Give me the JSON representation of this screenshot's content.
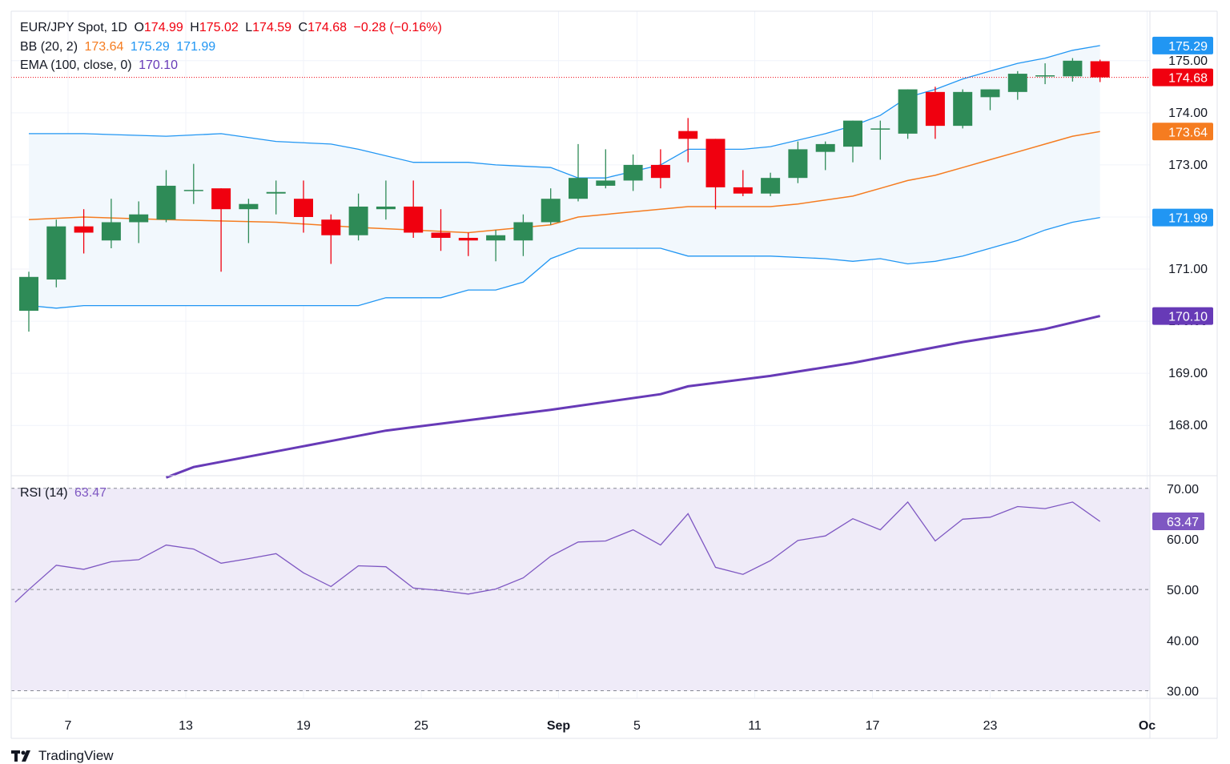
{
  "header": {
    "symbol": "EUR/JPY Spot, 1D",
    "o_label": "O",
    "o": "174.99",
    "h_label": "H",
    "h": "175.02",
    "l_label": "L",
    "l": "174.59",
    "c_label": "C",
    "c": "174.68",
    "change": "−0.28 (−0.16%)"
  },
  "bb_legend": {
    "label": "BB (20, 2)",
    "basis": "173.64",
    "upper": "175.29",
    "lower": "171.99"
  },
  "ema_legend": {
    "label": "EMA (100, close, 0)",
    "value": "170.10"
  },
  "rsi_legend": {
    "label": "RSI (14)",
    "value": "63.47"
  },
  "footer": {
    "brand": "TradingView"
  },
  "colors": {
    "up": "#2e8b57",
    "down": "#f0000f",
    "bb_band": "#2196f3",
    "bb_basis": "#f57c20",
    "ema": "#673ab7",
    "rsi": "#7e57c2",
    "rsi_fill": "#efebf8",
    "bb_fill": "#f2f8fd",
    "grid": "#f0f3fa"
  },
  "chart_data": [
    {
      "type": "candlestick",
      "title": "EUR/JPY Spot, 1D",
      "ylim": [
        167.05,
        175.95
      ],
      "y_ticks": [
        "168.00",
        "169.00",
        "170.00",
        "171.00",
        "172.00",
        "173.00",
        "174.00",
        "175.00"
      ],
      "x_ticks": [
        {
          "label": "7",
          "date": "2024-08-07"
        },
        {
          "label": "13",
          "date": "2024-08-13"
        },
        {
          "label": "19",
          "date": "2024-08-19"
        },
        {
          "label": "25",
          "date": "2024-08-25"
        },
        {
          "label": "Sep",
          "date": "2024-09-01"
        },
        {
          "label": "5",
          "date": "2024-09-05"
        },
        {
          "label": "11",
          "date": "2024-09-11"
        },
        {
          "label": "17",
          "date": "2024-09-17"
        },
        {
          "label": "23",
          "date": "2024-09-23"
        },
        {
          "label": "Oc",
          "date": "2024-10-01"
        }
      ],
      "candles": [
        {
          "date": "2024-08-05",
          "o": 170.2,
          "h": 170.95,
          "l": 169.8,
          "c": 170.85
        },
        {
          "date": "2024-08-06",
          "o": 170.8,
          "h": 171.95,
          "l": 170.65,
          "c": 171.82
        },
        {
          "date": "2024-08-07",
          "o": 171.82,
          "h": 172.15,
          "l": 171.3,
          "c": 171.7
        },
        {
          "date": "2024-08-08",
          "o": 171.55,
          "h": 172.35,
          "l": 171.4,
          "c": 171.9
        },
        {
          "date": "2024-08-09",
          "o": 171.9,
          "h": 172.3,
          "l": 171.5,
          "c": 172.05
        },
        {
          "date": "2024-08-12",
          "o": 171.95,
          "h": 172.9,
          "l": 171.9,
          "c": 172.6
        },
        {
          "date": "2024-08-13",
          "o": 172.52,
          "h": 173.02,
          "l": 172.25,
          "c": 172.52
        },
        {
          "date": "2024-08-14",
          "o": 172.55,
          "h": 172.55,
          "l": 170.95,
          "c": 172.15
        },
        {
          "date": "2024-08-15",
          "o": 172.15,
          "h": 172.35,
          "l": 171.5,
          "c": 172.25
        },
        {
          "date": "2024-08-16",
          "o": 172.45,
          "h": 172.7,
          "l": 172.05,
          "c": 172.48
        },
        {
          "date": "2024-08-19",
          "o": 172.35,
          "h": 172.7,
          "l": 171.7,
          "c": 172.0
        },
        {
          "date": "2024-08-20",
          "o": 171.95,
          "h": 172.05,
          "l": 171.1,
          "c": 171.65
        },
        {
          "date": "2024-08-21",
          "o": 171.65,
          "h": 172.45,
          "l": 171.55,
          "c": 172.2
        },
        {
          "date": "2024-08-22",
          "o": 172.15,
          "h": 172.7,
          "l": 171.95,
          "c": 172.2
        },
        {
          "date": "2024-08-23",
          "o": 172.2,
          "h": 172.7,
          "l": 171.6,
          "c": 171.7
        },
        {
          "date": "2024-08-26",
          "o": 171.7,
          "h": 172.15,
          "l": 171.35,
          "c": 171.6
        },
        {
          "date": "2024-08-27",
          "o": 171.6,
          "h": 171.7,
          "l": 171.25,
          "c": 171.55
        },
        {
          "date": "2024-08-28",
          "o": 171.55,
          "h": 171.75,
          "l": 171.15,
          "c": 171.65
        },
        {
          "date": "2024-08-29",
          "o": 171.55,
          "h": 172.05,
          "l": 171.25,
          "c": 171.9
        },
        {
          "date": "2024-08-30",
          "o": 171.9,
          "h": 172.55,
          "l": 171.85,
          "c": 172.35
        },
        {
          "date": "2024-09-02",
          "o": 172.35,
          "h": 173.4,
          "l": 172.3,
          "c": 172.75
        },
        {
          "date": "2024-09-03",
          "o": 172.6,
          "h": 173.3,
          "l": 172.55,
          "c": 172.7
        },
        {
          "date": "2024-09-04",
          "o": 172.7,
          "h": 173.2,
          "l": 172.5,
          "c": 173.0
        },
        {
          "date": "2024-09-05",
          "o": 173.0,
          "h": 173.3,
          "l": 172.55,
          "c": 172.75
        },
        {
          "date": "2024-09-06",
          "o": 173.65,
          "h": 173.9,
          "l": 173.05,
          "c": 173.5
        },
        {
          "date": "2024-09-09",
          "o": 173.5,
          "h": 173.5,
          "l": 172.15,
          "c": 172.57
        },
        {
          "date": "2024-09-10",
          "o": 172.57,
          "h": 172.9,
          "l": 172.4,
          "c": 172.45
        },
        {
          "date": "2024-09-11",
          "o": 172.45,
          "h": 172.85,
          "l": 172.4,
          "c": 172.75
        },
        {
          "date": "2024-09-12",
          "o": 172.75,
          "h": 173.45,
          "l": 172.65,
          "c": 173.3
        },
        {
          "date": "2024-09-13",
          "o": 173.25,
          "h": 173.45,
          "l": 172.9,
          "c": 173.4
        },
        {
          "date": "2024-09-16",
          "o": 173.35,
          "h": 173.85,
          "l": 173.05,
          "c": 173.85
        },
        {
          "date": "2024-09-17",
          "o": 173.7,
          "h": 173.85,
          "l": 173.1,
          "c": 173.7
        },
        {
          "date": "2024-09-18",
          "o": 173.6,
          "h": 174.45,
          "l": 173.5,
          "c": 174.45
        },
        {
          "date": "2024-09-19",
          "o": 174.4,
          "h": 174.5,
          "l": 173.5,
          "c": 173.75
        },
        {
          "date": "2024-09-20",
          "o": 173.75,
          "h": 174.45,
          "l": 173.7,
          "c": 174.4
        },
        {
          "date": "2024-09-23",
          "o": 174.3,
          "h": 174.45,
          "l": 174.05,
          "c": 174.45
        },
        {
          "date": "2024-09-24",
          "o": 174.4,
          "h": 174.8,
          "l": 174.25,
          "c": 174.75
        },
        {
          "date": "2024-09-25",
          "o": 174.72,
          "h": 174.95,
          "l": 174.55,
          "c": 174.72
        },
        {
          "date": "2024-09-26",
          "o": 174.7,
          "h": 175.05,
          "l": 174.6,
          "c": 175.0
        },
        {
          "date": "2024-09-27",
          "o": 174.99,
          "h": 175.02,
          "l": 174.59,
          "c": 174.68
        }
      ],
      "bb_upper_points": [
        [
          0,
          173.6
        ],
        [
          2,
          173.6
        ],
        [
          5,
          173.55
        ],
        [
          7,
          173.6
        ],
        [
          9,
          173.45
        ],
        [
          11,
          173.4
        ],
        [
          12,
          173.3
        ],
        [
          14,
          173.05
        ],
        [
          16,
          173.05
        ],
        [
          17,
          173.0
        ],
        [
          19,
          172.95
        ],
        [
          20,
          172.75
        ],
        [
          21,
          172.75
        ],
        [
          23,
          173.0
        ],
        [
          24,
          173.3
        ],
        [
          26,
          173.3
        ],
        [
          27,
          173.35
        ],
        [
          29,
          173.6
        ],
        [
          30,
          173.75
        ],
        [
          31,
          173.95
        ],
        [
          32,
          174.3
        ],
        [
          33,
          174.45
        ],
        [
          34,
          174.65
        ],
        [
          35,
          174.8
        ],
        [
          36,
          174.95
        ],
        [
          37,
          175.05
        ],
        [
          38,
          175.2
        ],
        [
          39,
          175.29
        ]
      ],
      "bb_basis_points": [
        [
          0,
          171.95
        ],
        [
          2,
          172.0
        ],
        [
          5,
          171.95
        ],
        [
          9,
          171.9
        ],
        [
          12,
          171.8
        ],
        [
          14,
          171.75
        ],
        [
          16,
          171.7
        ],
        [
          17,
          171.75
        ],
        [
          19,
          171.85
        ],
        [
          20,
          172.0
        ],
        [
          21,
          172.05
        ],
        [
          24,
          172.2
        ],
        [
          27,
          172.2
        ],
        [
          28,
          172.25
        ],
        [
          30,
          172.4
        ],
        [
          31,
          172.55
        ],
        [
          32,
          172.7
        ],
        [
          33,
          172.8
        ],
        [
          34,
          172.95
        ],
        [
          35,
          173.1
        ],
        [
          36,
          173.25
        ],
        [
          37,
          173.4
        ],
        [
          38,
          173.55
        ],
        [
          39,
          173.64
        ]
      ],
      "bb_lower_points": [
        [
          0,
          170.3
        ],
        [
          1,
          170.25
        ],
        [
          2,
          170.3
        ],
        [
          5,
          170.3
        ],
        [
          9,
          170.3
        ],
        [
          11,
          170.3
        ],
        [
          12,
          170.3
        ],
        [
          13,
          170.45
        ],
        [
          15,
          170.45
        ],
        [
          16,
          170.6
        ],
        [
          17,
          170.6
        ],
        [
          18,
          170.75
        ],
        [
          19,
          171.2
        ],
        [
          20,
          171.4
        ],
        [
          23,
          171.4
        ],
        [
          24,
          171.25
        ],
        [
          27,
          171.25
        ],
        [
          29,
          171.2
        ],
        [
          30,
          171.15
        ],
        [
          31,
          171.2
        ],
        [
          32,
          171.1
        ],
        [
          33,
          171.15
        ],
        [
          34,
          171.25
        ],
        [
          35,
          171.4
        ],
        [
          36,
          171.55
        ],
        [
          37,
          171.75
        ],
        [
          38,
          171.9
        ],
        [
          39,
          171.99
        ]
      ],
      "ema_points": [
        [
          5,
          167.0
        ],
        [
          6,
          167.2
        ],
        [
          9,
          167.5
        ],
        [
          11,
          167.7
        ],
        [
          13,
          167.9
        ],
        [
          16,
          168.1
        ],
        [
          19,
          168.3
        ],
        [
          23,
          168.6
        ],
        [
          24,
          168.75
        ],
        [
          27,
          168.95
        ],
        [
          30,
          169.2
        ],
        [
          32,
          169.4
        ],
        [
          34,
          169.6
        ],
        [
          37,
          169.85
        ],
        [
          39,
          170.1
        ]
      ],
      "last_close": 174.68,
      "price_labels": [
        {
          "value": 175.29,
          "text": "175.29",
          "color": "#2196f3"
        },
        {
          "value": 174.68,
          "text": "174.68",
          "color": "#f0000f"
        },
        {
          "value": 173.64,
          "text": "173.64",
          "color": "#f57c20"
        },
        {
          "value": 171.99,
          "text": "171.99",
          "color": "#2196f3"
        },
        {
          "value": 170.1,
          "text": "170.10",
          "color": "#673ab7"
        }
      ]
    },
    {
      "type": "line",
      "title": "RSI (14)",
      "ylim": [
        28.5,
        72.5
      ],
      "y_ticks": [
        "30.00",
        "40.00",
        "50.00",
        "60.00",
        "70.00"
      ],
      "band": [
        30,
        70
      ],
      "mid": 50,
      "series": [
        {
          "name": "RSI (14)",
          "values": [
            [
              -0.5,
              47.5
            ],
            [
              0,
              50.0
            ],
            [
              1,
              54.8
            ],
            [
              2,
              54.0
            ],
            [
              3,
              55.5
            ],
            [
              4,
              55.9
            ],
            [
              5,
              58.8
            ],
            [
              6,
              58.0
            ],
            [
              7,
              55.2
            ],
            [
              8,
              56.1
            ],
            [
              9,
              57.1
            ],
            [
              10,
              53.3
            ],
            [
              11,
              50.6
            ],
            [
              12,
              54.7
            ],
            [
              13,
              54.5
            ],
            [
              14,
              50.3
            ],
            [
              15,
              49.8
            ],
            [
              16,
              49.1
            ],
            [
              17,
              50.1
            ],
            [
              18,
              52.3
            ],
            [
              19,
              56.6
            ],
            [
              20,
              59.4
            ],
            [
              21,
              59.6
            ],
            [
              22,
              61.8
            ],
            [
              23,
              58.8
            ],
            [
              24,
              65.0
            ],
            [
              25,
              54.4
            ],
            [
              26,
              53.0
            ],
            [
              27,
              55.7
            ],
            [
              28,
              59.7
            ],
            [
              29,
              60.6
            ],
            [
              30,
              64.0
            ],
            [
              31,
              61.8
            ],
            [
              32,
              67.3
            ],
            [
              33,
              59.6
            ],
            [
              34,
              63.9
            ],
            [
              35,
              64.3
            ],
            [
              36,
              66.4
            ],
            [
              37,
              66.0
            ],
            [
              38,
              67.3
            ],
            [
              39,
              63.47
            ]
          ]
        }
      ],
      "last": 63.47
    }
  ]
}
